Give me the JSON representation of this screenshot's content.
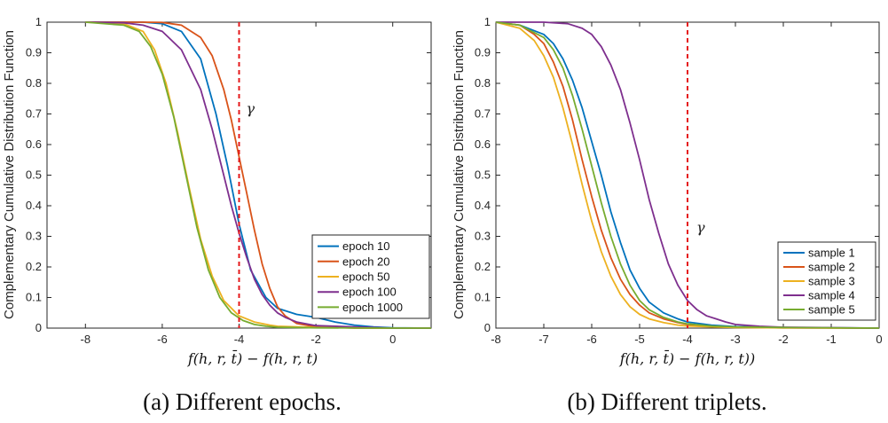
{
  "chart_data": [
    {
      "type": "line",
      "caption": "(a)  Different epochs.",
      "xlabel": "f(h, r, t̄) − f(h, r, t)",
      "ylabel": "Complementary Cumulative Distribution Function",
      "xlim": [
        -9,
        1
      ],
      "ylim": [
        0,
        1
      ],
      "xticks": [
        "-8",
        "-6",
        "-4",
        "-2",
        "0"
      ],
      "yticks": [
        "0",
        "0.1",
        "0.2",
        "0.3",
        "0.4",
        "0.5",
        "0.6",
        "0.7",
        "0.8",
        "0.9",
        "1"
      ],
      "gamma": {
        "x": -4,
        "label": "γ"
      },
      "legend_position": "bottom-right",
      "series": [
        {
          "name": "epoch 10",
          "color": "#0072BD",
          "x": [
            -8,
            -6.5,
            -6,
            -5.5,
            -5,
            -4.6,
            -4.3,
            -4.0,
            -3.7,
            -3.3,
            -3.0,
            -2.5,
            -2.0,
            -1.5,
            -1.0,
            -0.5,
            0,
            1
          ],
          "y": [
            1,
            1,
            0.995,
            0.97,
            0.88,
            0.7,
            0.53,
            0.34,
            0.19,
            0.1,
            0.065,
            0.045,
            0.035,
            0.02,
            0.01,
            0.004,
            0.001,
            0
          ]
        },
        {
          "name": "epoch 20",
          "color": "#D95319",
          "x": [
            -8,
            -6.5,
            -6,
            -5.5,
            -5,
            -4.7,
            -4.4,
            -4.2,
            -4.0,
            -3.8,
            -3.6,
            -3.4,
            -3.2,
            -3.0,
            -2.8,
            -2.5,
            -2.0,
            -1.0,
            0,
            1
          ],
          "y": [
            1,
            1,
            0.999,
            0.99,
            0.95,
            0.89,
            0.78,
            0.68,
            0.56,
            0.44,
            0.32,
            0.21,
            0.13,
            0.07,
            0.04,
            0.015,
            0.004,
            0,
            0,
            0
          ]
        },
        {
          "name": "epoch 50",
          "color": "#EDB120",
          "x": [
            -8,
            -7,
            -6.5,
            -6.2,
            -5.9,
            -5.6,
            -5.3,
            -5.0,
            -4.7,
            -4.4,
            -4.0,
            -3.6,
            -3.2,
            -3.0,
            -2.0,
            0,
            1
          ],
          "y": [
            1,
            0.995,
            0.97,
            0.91,
            0.8,
            0.64,
            0.46,
            0.29,
            0.17,
            0.09,
            0.04,
            0.02,
            0.01,
            0.006,
            0.002,
            0,
            0
          ]
        },
        {
          "name": "epoch 100",
          "color": "#7E2F8E",
          "x": [
            -8,
            -7,
            -6.5,
            -6.0,
            -5.5,
            -5.0,
            -4.7,
            -4.4,
            -4.2,
            -4.0,
            -3.8,
            -3.6,
            -3.4,
            -3.2,
            -3.0,
            -2.8,
            -2.5,
            -2.0,
            0,
            1
          ],
          "y": [
            1,
            0.998,
            0.99,
            0.97,
            0.91,
            0.78,
            0.65,
            0.5,
            0.4,
            0.31,
            0.23,
            0.16,
            0.11,
            0.075,
            0.05,
            0.035,
            0.02,
            0.008,
            0,
            0
          ]
        },
        {
          "name": "epoch 1000",
          "color": "#77AC30",
          "x": [
            -8,
            -7,
            -6.6,
            -6.3,
            -6.0,
            -5.7,
            -5.4,
            -5.1,
            -4.8,
            -4.5,
            -4.2,
            -3.9,
            -3.6,
            -3.3,
            -3.0,
            -2.0,
            0,
            1
          ],
          "y": [
            1,
            0.99,
            0.97,
            0.92,
            0.83,
            0.69,
            0.51,
            0.33,
            0.19,
            0.1,
            0.05,
            0.025,
            0.012,
            0.006,
            0.003,
            0.001,
            0,
            0
          ]
        }
      ]
    },
    {
      "type": "line",
      "caption": "(b)  Different triplets.",
      "xlabel": "f(h, r, t̄) − f(h, r, t))",
      "ylabel": "Complementary Cumulative Distribution Function",
      "xlim": [
        -8,
        0
      ],
      "ylim": [
        0,
        1
      ],
      "xticks": [
        "-8",
        "-7",
        "-6",
        "-5",
        "-4",
        "-3",
        "-2",
        "-1",
        "0"
      ],
      "yticks": [
        "0",
        "0.1",
        "0.2",
        "0.3",
        "0.4",
        "0.5",
        "0.6",
        "0.7",
        "0.8",
        "0.9",
        "1"
      ],
      "gamma": {
        "x": -4,
        "label": "γ"
      },
      "legend_position": "bottom-right",
      "series": [
        {
          "name": "sample 1",
          "color": "#0072BD",
          "x": [
            -8,
            -7.5,
            -7.0,
            -6.8,
            -6.6,
            -6.4,
            -6.2,
            -6.0,
            -5.8,
            -5.6,
            -5.4,
            -5.2,
            -5.0,
            -4.8,
            -4.5,
            -4.2,
            -4.0,
            -3.5,
            -3.0,
            -2.0,
            0
          ],
          "y": [
            1,
            0.99,
            0.96,
            0.93,
            0.88,
            0.81,
            0.72,
            0.61,
            0.5,
            0.38,
            0.28,
            0.19,
            0.13,
            0.085,
            0.05,
            0.03,
            0.02,
            0.01,
            0.005,
            0.002,
            0
          ]
        },
        {
          "name": "sample 2",
          "color": "#D95319",
          "x": [
            -8,
            -7.5,
            -7.2,
            -7.0,
            -6.8,
            -6.6,
            -6.4,
            -6.2,
            -6.0,
            -5.8,
            -5.6,
            -5.4,
            -5.2,
            -5.0,
            -4.8,
            -4.5,
            -4.2,
            -4.0,
            -3.5,
            -3.0,
            -2.0,
            0
          ],
          "y": [
            1,
            0.99,
            0.96,
            0.93,
            0.87,
            0.79,
            0.68,
            0.55,
            0.43,
            0.32,
            0.23,
            0.16,
            0.11,
            0.075,
            0.05,
            0.03,
            0.018,
            0.012,
            0.006,
            0.003,
            0.001,
            0
          ]
        },
        {
          "name": "sample 3",
          "color": "#EDB120",
          "x": [
            -8,
            -7.5,
            -7.2,
            -7.0,
            -6.8,
            -6.6,
            -6.4,
            -6.2,
            -6.0,
            -5.8,
            -5.6,
            -5.4,
            -5.2,
            -5.0,
            -4.8,
            -4.5,
            -4.2,
            -4.0,
            -3.5,
            -3.0,
            -2.0,
            0
          ],
          "y": [
            1,
            0.98,
            0.94,
            0.89,
            0.82,
            0.72,
            0.6,
            0.47,
            0.35,
            0.25,
            0.17,
            0.11,
            0.07,
            0.045,
            0.03,
            0.018,
            0.01,
            0.007,
            0.004,
            0.002,
            0.001,
            0
          ]
        },
        {
          "name": "sample 4",
          "color": "#7E2F8E",
          "x": [
            -8,
            -7.0,
            -6.5,
            -6.2,
            -6.0,
            -5.8,
            -5.6,
            -5.4,
            -5.2,
            -5.0,
            -4.8,
            -4.6,
            -4.4,
            -4.2,
            -4.0,
            -3.8,
            -3.6,
            -3.4,
            -3.2,
            -3.0,
            -2.5,
            -2.0,
            0
          ],
          "y": [
            1,
            1,
            0.995,
            0.98,
            0.96,
            0.92,
            0.86,
            0.78,
            0.67,
            0.55,
            0.42,
            0.31,
            0.21,
            0.14,
            0.09,
            0.06,
            0.04,
            0.03,
            0.02,
            0.012,
            0.006,
            0.003,
            0
          ]
        },
        {
          "name": "sample 5",
          "color": "#77AC30",
          "x": [
            -8,
            -7.5,
            -7.0,
            -6.8,
            -6.6,
            -6.4,
            -6.2,
            -6.0,
            -5.8,
            -5.6,
            -5.4,
            -5.2,
            -5.0,
            -4.8,
            -4.5,
            -4.2,
            -4.0,
            -3.5,
            -3.0,
            -2.0,
            0
          ],
          "y": [
            1,
            0.99,
            0.95,
            0.91,
            0.85,
            0.76,
            0.65,
            0.53,
            0.41,
            0.3,
            0.21,
            0.14,
            0.09,
            0.06,
            0.035,
            0.02,
            0.014,
            0.007,
            0.004,
            0.002,
            0
          ]
        }
      ]
    }
  ]
}
